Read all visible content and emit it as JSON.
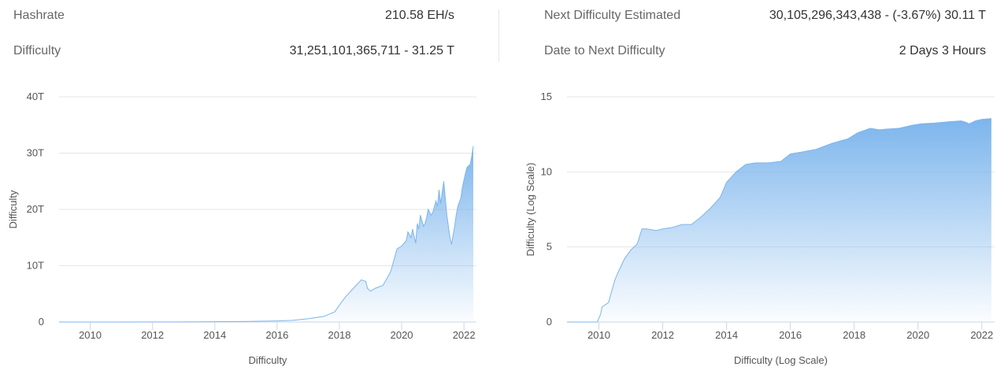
{
  "stats": {
    "hashrate": {
      "label": "Hashrate",
      "value": "210.58 EH/s"
    },
    "difficulty": {
      "label": "Difficulty",
      "value": "31,251,101,365,711 - 31.25 T"
    },
    "next_difficulty": {
      "label": "Next Difficulty Estimated",
      "value": "30,105,296,343,438 - (-3.67%) 30.11 T"
    },
    "date_next": {
      "label": "Date to Next Difficulty",
      "value": "2 Days 3 Hours"
    }
  },
  "colors": {
    "accent": "#7cb5ec",
    "grid": "#e6e6e6",
    "axis": "#ccd6eb"
  },
  "chart_data": [
    {
      "type": "area",
      "title": "",
      "xlabel": "Difficulty",
      "ylabel": "Difficulty",
      "xlim": [
        2009.0,
        2022.4
      ],
      "ylim": [
        0,
        40
      ],
      "x_ticks": [
        "2010",
        "2012",
        "2014",
        "2016",
        "2018",
        "2020",
        "2022"
      ],
      "y_ticks": [
        "0",
        "10T",
        "20T",
        "30T",
        "40T"
      ],
      "grid": true,
      "series": [
        {
          "x": [
            2009.0,
            2013.0,
            2015.0,
            2016.0,
            2016.5,
            2017.0,
            2017.5,
            2017.85,
            2018.0,
            2018.2,
            2018.45,
            2018.7,
            2018.85,
            2018.9,
            2019.0,
            2019.15,
            2019.4,
            2019.5,
            2019.65,
            2019.75,
            2019.85,
            2020.0,
            2020.15,
            2020.2,
            2020.3,
            2020.35,
            2020.45,
            2020.5,
            2020.55,
            2020.6,
            2020.7,
            2020.75,
            2020.8,
            2020.85,
            2020.95,
            2021.0,
            2021.1,
            2021.15,
            2021.2,
            2021.25,
            2021.3,
            2021.35,
            2021.45,
            2021.55,
            2021.6,
            2021.7,
            2021.75,
            2021.8,
            2021.9,
            2021.95,
            2022.05,
            2022.1,
            2022.2,
            2022.25,
            2022.3
          ],
          "y": [
            0,
            0.01,
            0.1,
            0.2,
            0.3,
            0.6,
            1.0,
            1.8,
            3.0,
            4.5,
            6.0,
            7.5,
            7.2,
            6.0,
            5.5,
            6.0,
            6.5,
            7.5,
            9.0,
            11.0,
            13.0,
            13.5,
            14.5,
            16.0,
            15.0,
            16.5,
            14.0,
            17.5,
            16.5,
            19.0,
            17.0,
            17.5,
            18.5,
            20.0,
            19.0,
            19.5,
            21.5,
            20.5,
            23.5,
            21.0,
            23.0,
            25.0,
            19.0,
            15.0,
            13.8,
            17.0,
            19.0,
            20.5,
            22.0,
            24.0,
            26.5,
            27.5,
            28.0,
            29.5,
            31.25
          ]
        }
      ]
    },
    {
      "type": "area",
      "title": "",
      "xlabel": "Difficulty (Log Scale)",
      "ylabel": "Difficulty (Log Scale)",
      "xlim": [
        2009.0,
        2022.4
      ],
      "ylim": [
        0,
        15
      ],
      "x_ticks": [
        "2010",
        "2012",
        "2014",
        "2016",
        "2018",
        "2020",
        "2022"
      ],
      "y_ticks": [
        "0",
        "5",
        "10",
        "15"
      ],
      "grid": true,
      "series": [
        {
          "x": [
            2009.0,
            2009.95,
            2010.05,
            2010.1,
            2010.3,
            2010.5,
            2010.6,
            2010.8,
            2011.0,
            2011.2,
            2011.35,
            2011.5,
            2011.8,
            2012.0,
            2012.3,
            2012.6,
            2012.9,
            2013.2,
            2013.5,
            2013.8,
            2014.0,
            2014.3,
            2014.6,
            2014.9,
            2015.3,
            2015.7,
            2016.0,
            2016.3,
            2016.8,
            2017.3,
            2017.8,
            2018.1,
            2018.5,
            2018.8,
            2019.0,
            2019.4,
            2019.8,
            2020.1,
            2020.5,
            2021.0,
            2021.35,
            2021.5,
            2021.6,
            2021.8,
            2022.0,
            2022.3
          ],
          "y": [
            0,
            0.0,
            0.5,
            1.0,
            1.3,
            2.8,
            3.3,
            4.2,
            4.8,
            5.2,
            6.2,
            6.2,
            6.1,
            6.2,
            6.3,
            6.5,
            6.5,
            7.0,
            7.6,
            8.3,
            9.3,
            10.0,
            10.5,
            10.6,
            10.6,
            10.7,
            11.2,
            11.3,
            11.5,
            11.9,
            12.2,
            12.6,
            12.9,
            12.8,
            12.85,
            12.9,
            13.1,
            13.2,
            13.25,
            13.35,
            13.4,
            13.3,
            13.2,
            13.4,
            13.5,
            13.55
          ]
        }
      ]
    }
  ]
}
